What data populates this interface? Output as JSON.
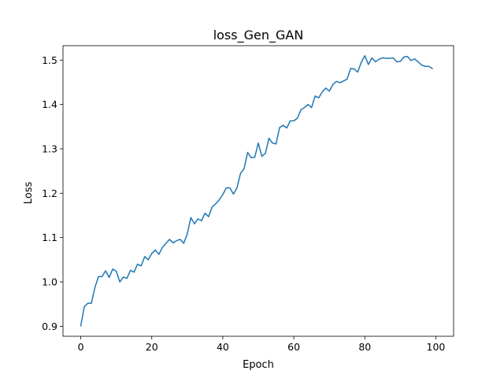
{
  "chart_data": {
    "type": "line",
    "title": "loss_Gen_GAN",
    "xlabel": "Epoch",
    "ylabel": "Loss",
    "xlim": [
      -5,
      105
    ],
    "ylim": [
      0.8775,
      1.5325
    ],
    "xticks": [
      0,
      20,
      40,
      60,
      80,
      100
    ],
    "yticks": [
      0.9,
      1.0,
      1.1,
      1.2,
      1.3,
      1.4,
      1.5
    ],
    "grid": false,
    "legend": "none",
    "series": [
      {
        "color": "#1f77b4",
        "x": [
          0,
          1,
          2,
          3,
          4,
          5,
          6,
          7,
          8,
          9,
          10,
          11,
          12,
          13,
          14,
          15,
          16,
          17,
          18,
          19,
          20,
          21,
          22,
          23,
          24,
          25,
          26,
          27,
          28,
          29,
          30,
          31,
          32,
          33,
          34,
          35,
          36,
          37,
          38,
          39,
          40,
          41,
          42,
          43,
          44,
          45,
          46,
          47,
          48,
          49,
          50,
          51,
          52,
          53,
          54,
          55,
          56,
          57,
          58,
          59,
          60,
          61,
          62,
          63,
          64,
          65,
          66,
          67,
          68,
          69,
          70,
          71,
          72,
          73,
          74,
          75,
          76,
          77,
          78,
          79,
          80,
          81,
          82,
          83,
          84,
          85,
          86,
          87,
          88,
          89,
          90,
          91,
          92,
          93,
          94,
          95,
          96,
          97,
          98,
          99
        ],
        "y": [
          0.901,
          0.944,
          0.952,
          0.952,
          0.988,
          1.012,
          1.012,
          1.025,
          1.01,
          1.029,
          1.024,
          1.0,
          1.011,
          1.008,
          1.026,
          1.022,
          1.04,
          1.036,
          1.057,
          1.05,
          1.064,
          1.072,
          1.062,
          1.078,
          1.087,
          1.096,
          1.088,
          1.093,
          1.096,
          1.087,
          1.108,
          1.145,
          1.131,
          1.142,
          1.138,
          1.155,
          1.147,
          1.169,
          1.176,
          1.185,
          1.197,
          1.212,
          1.212,
          1.198,
          1.212,
          1.245,
          1.255,
          1.292,
          1.28,
          1.281,
          1.313,
          1.283,
          1.29,
          1.324,
          1.313,
          1.311,
          1.348,
          1.353,
          1.347,
          1.363,
          1.363,
          1.369,
          1.388,
          1.393,
          1.4,
          1.393,
          1.419,
          1.415,
          1.428,
          1.437,
          1.43,
          1.445,
          1.452,
          1.449,
          1.453,
          1.457,
          1.481,
          1.48,
          1.473,
          1.495,
          1.51,
          1.49,
          1.505,
          1.496,
          1.502,
          1.505,
          1.504,
          1.504,
          1.505,
          1.496,
          1.497,
          1.507,
          1.508,
          1.499,
          1.503,
          1.496,
          1.489,
          1.486,
          1.486,
          1.481
        ]
      }
    ]
  }
}
